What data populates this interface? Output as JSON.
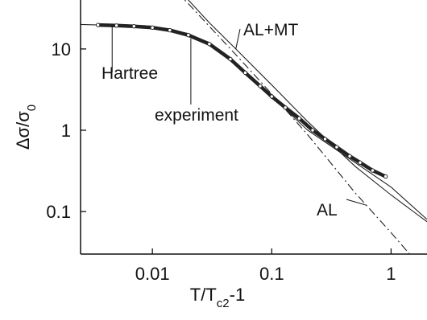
{
  "chart_data": {
    "type": "line",
    "title": "",
    "xscale": "log",
    "yscale": "log",
    "xlim": [
      0.0025,
      2.0
    ],
    "ylim": [
      0.03,
      40
    ],
    "x_ticks": [
      0.01,
      0.1,
      1
    ],
    "x_tick_labels": [
      "0.01",
      "0.1",
      "1"
    ],
    "y_ticks": [
      0.1,
      1,
      10
    ],
    "y_tick_labels": [
      "0.1",
      "1",
      "10"
    ],
    "xlabel": {
      "main": "T/T",
      "sub": "c2",
      "suffix": "-1"
    },
    "ylabel": {
      "main": "Δσ/σ",
      "sub": "0"
    },
    "grid": false,
    "series": [
      {
        "name": "AL+MT",
        "style": "solid",
        "color": "#222222",
        "x": [
          0.016,
          0.02,
          0.03,
          0.05,
          0.1,
          0.2,
          0.5,
          1.0,
          2.0
        ],
        "y": [
          50,
          40,
          21,
          10,
          3.6,
          1.28,
          0.36,
          0.16,
          0.075
        ]
      },
      {
        "name": "AL",
        "style": "dashdot",
        "color": "#222222",
        "x": [
          0.016,
          0.02,
          0.03,
          0.05,
          0.1,
          0.2,
          0.5,
          1.0,
          2.0
        ],
        "y": [
          50,
          36,
          19,
          8.5,
          2.8,
          0.88,
          0.17,
          0.055,
          0.017
        ]
      },
      {
        "name": "Hartree",
        "style": "solid",
        "color": "#222222",
        "x": [
          0.0025,
          0.005,
          0.01,
          0.02,
          0.03,
          0.05,
          0.1,
          0.2,
          0.5,
          1.0,
          2.0
        ],
        "y": [
          20,
          19.5,
          18.5,
          15.5,
          11.5,
          6.5,
          2.6,
          1.0,
          0.4,
          0.2,
          0.08
        ]
      },
      {
        "name": "experiment",
        "style": "markers",
        "color": "#222222",
        "x": [
          0.0035,
          0.005,
          0.007,
          0.01,
          0.014,
          0.02,
          0.03,
          0.045,
          0.06,
          0.08,
          0.1,
          0.13,
          0.17,
          0.22,
          0.28,
          0.35,
          0.45,
          0.55,
          0.7,
          0.9
        ],
        "y": [
          19.7,
          19.4,
          19.0,
          18.3,
          17.0,
          14.8,
          11.5,
          7.5,
          5.1,
          3.5,
          2.6,
          1.9,
          1.4,
          1.0,
          0.78,
          0.62,
          0.48,
          0.4,
          0.32,
          0.27
        ]
      }
    ],
    "annotations": [
      {
        "text": "AL+MT",
        "target": "AL+MT"
      },
      {
        "text": "Hartree",
        "target": "Hartree"
      },
      {
        "text": "experiment",
        "target": "experiment"
      },
      {
        "text": "AL",
        "target": "AL"
      }
    ]
  }
}
